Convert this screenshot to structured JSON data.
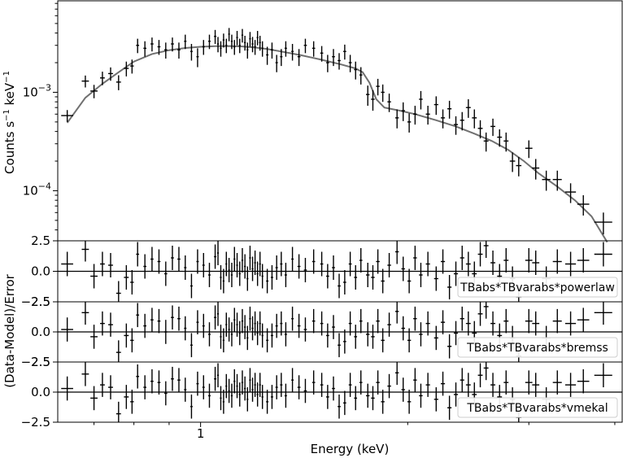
{
  "chart_data": [
    {
      "type": "scatter",
      "panel": "spectrum",
      "xscale": "log",
      "yscale": "log",
      "xlim": [
        0.62,
        4.1
      ],
      "ylim": [
        3.1e-05,
        0.0085
      ],
      "ylabel_parts": [
        "Counts s",
        "−1",
        " keV",
        "−1"
      ],
      "ytick_labels": [
        {
          "value": 0.001,
          "mant": "10",
          "exp": "−3"
        },
        {
          "value": 0.0001,
          "mant": "10",
          "exp": "−4"
        }
      ],
      "data": [
        [
          0.64,
          0.00058,
          0.02,
          8e-05
        ],
        [
          0.68,
          0.0013,
          0.012,
          0.00018
        ],
        [
          0.7,
          0.00103,
          0.012,
          0.00016
        ],
        [
          0.72,
          0.0014,
          0.008,
          0.00022
        ],
        [
          0.74,
          0.00155,
          0.008,
          0.00024
        ],
        [
          0.76,
          0.00127,
          0.008,
          0.00022
        ],
        [
          0.78,
          0.00175,
          0.008,
          0.0003
        ],
        [
          0.795,
          0.00185,
          0.006,
          0.0003
        ],
        [
          0.81,
          0.003,
          0.005,
          0.0005
        ],
        [
          0.83,
          0.0028,
          0.005,
          0.0005
        ],
        [
          0.85,
          0.0031,
          0.005,
          0.0005
        ],
        [
          0.87,
          0.0029,
          0.005,
          0.0005
        ],
        [
          0.89,
          0.0027,
          0.005,
          0.0005
        ],
        [
          0.91,
          0.0031,
          0.005,
          0.0005
        ],
        [
          0.93,
          0.0027,
          0.005,
          0.0005
        ],
        [
          0.95,
          0.0033,
          0.004,
          0.00055
        ],
        [
          0.97,
          0.0026,
          0.004,
          0.0005
        ],
        [
          0.99,
          0.0023,
          0.004,
          0.0005
        ],
        [
          1.01,
          0.0029,
          0.004,
          0.0005
        ],
        [
          1.03,
          0.0033,
          0.004,
          0.00055
        ],
        [
          1.05,
          0.0037,
          0.004,
          0.0006
        ],
        [
          1.06,
          0.0031,
          0.003,
          0.00055
        ],
        [
          1.07,
          0.0028,
          0.003,
          0.0005
        ],
        [
          1.08,
          0.0034,
          0.003,
          0.00055
        ],
        [
          1.09,
          0.003,
          0.003,
          0.0005
        ],
        [
          1.1,
          0.0039,
          0.003,
          0.0006
        ],
        [
          1.11,
          0.0033,
          0.003,
          0.00055
        ],
        [
          1.12,
          0.0029,
          0.003,
          0.0005
        ],
        [
          1.13,
          0.0036,
          0.003,
          0.0006
        ],
        [
          1.14,
          0.003,
          0.003,
          0.0005
        ],
        [
          1.15,
          0.0038,
          0.003,
          0.0006
        ],
        [
          1.16,
          0.0032,
          0.003,
          0.00055
        ],
        [
          1.17,
          0.0027,
          0.003,
          0.0005
        ],
        [
          1.18,
          0.0035,
          0.003,
          0.0006
        ],
        [
          1.19,
          0.0031,
          0.003,
          0.00055
        ],
        [
          1.2,
          0.0029,
          0.003,
          0.0005
        ],
        [
          1.21,
          0.0036,
          0.003,
          0.0006
        ],
        [
          1.22,
          0.0032,
          0.003,
          0.00055
        ],
        [
          1.23,
          0.0028,
          0.003,
          0.0005
        ],
        [
          1.25,
          0.0024,
          0.004,
          0.0005
        ],
        [
          1.27,
          0.0027,
          0.004,
          0.0005
        ],
        [
          1.29,
          0.002,
          0.004,
          0.0004
        ],
        [
          1.31,
          0.0023,
          0.004,
          0.00045
        ],
        [
          1.33,
          0.0028,
          0.004,
          0.0005
        ],
        [
          1.36,
          0.0026,
          0.004,
          0.0005
        ],
        [
          1.39,
          0.0023,
          0.005,
          0.00045
        ],
        [
          1.42,
          0.003,
          0.005,
          0.0005
        ],
        [
          1.46,
          0.0028,
          0.005,
          0.0005
        ],
        [
          1.5,
          0.0025,
          0.005,
          0.00045
        ],
        [
          1.53,
          0.002,
          0.005,
          0.0004
        ],
        [
          1.56,
          0.0023,
          0.005,
          0.00045
        ],
        [
          1.59,
          0.0021,
          0.005,
          0.0004
        ],
        [
          1.62,
          0.0026,
          0.005,
          0.00045
        ],
        [
          1.65,
          0.002,
          0.005,
          0.0004
        ],
        [
          1.68,
          0.0017,
          0.005,
          0.00035
        ],
        [
          1.71,
          0.0015,
          0.005,
          0.0003
        ],
        [
          1.75,
          0.00095,
          0.006,
          0.00022
        ],
        [
          1.78,
          0.00085,
          0.006,
          0.0002
        ],
        [
          1.81,
          0.00115,
          0.006,
          0.00022
        ],
        [
          1.84,
          0.001,
          0.006,
          0.0002
        ],
        [
          1.88,
          0.0008,
          0.006,
          0.00017
        ],
        [
          1.93,
          0.00055,
          0.006,
          0.00012
        ],
        [
          1.97,
          0.00065,
          0.006,
          0.00014
        ],
        [
          2.01,
          0.0005,
          0.006,
          0.00011
        ],
        [
          2.05,
          0.0006,
          0.006,
          0.00013
        ],
        [
          2.09,
          0.00085,
          0.006,
          0.00018
        ],
        [
          2.14,
          0.0006,
          0.007,
          0.00013
        ],
        [
          2.2,
          0.00075,
          0.007,
          0.00016
        ],
        [
          2.25,
          0.00055,
          0.007,
          0.00012
        ],
        [
          2.3,
          0.00068,
          0.007,
          0.00014
        ],
        [
          2.35,
          0.00047,
          0.007,
          0.0001
        ],
        [
          2.4,
          0.00052,
          0.007,
          0.00011
        ],
        [
          2.45,
          0.0007,
          0.008,
          0.00015
        ],
        [
          2.5,
          0.00055,
          0.008,
          0.00012
        ],
        [
          2.55,
          0.00043,
          0.008,
          9e-05
        ],
        [
          2.6,
          0.00032,
          0.008,
          7e-05
        ],
        [
          2.66,
          0.00045,
          0.008,
          9e-05
        ],
        [
          2.72,
          0.00035,
          0.008,
          7e-05
        ],
        [
          2.78,
          0.00032,
          0.008,
          7e-05
        ],
        [
          2.84,
          0.0002,
          0.009,
          4.5e-05
        ],
        [
          2.9,
          0.00018,
          0.009,
          4e-05
        ],
        [
          3.0,
          0.00027,
          0.012,
          5.5e-05
        ],
        [
          3.07,
          0.00017,
          0.012,
          4e-05
        ],
        [
          3.18,
          0.00013,
          0.014,
          3e-05
        ],
        [
          3.3,
          0.00013,
          0.015,
          3e-05
        ],
        [
          3.45,
          9.7e-05,
          0.018,
          2.2e-05
        ],
        [
          3.6,
          7.3e-05,
          0.02,
          1.7e-05
        ],
        [
          3.85,
          4.8e-05,
          0.03,
          1.2e-05
        ]
      ],
      "model_x": [
        0.64,
        0.68,
        0.72,
        0.76,
        0.8,
        0.85,
        0.9,
        0.95,
        1.0,
        1.05,
        1.1,
        1.15,
        1.2,
        1.25,
        1.3,
        1.4,
        1.5,
        1.6,
        1.68,
        1.72,
        1.76,
        1.8,
        1.85,
        1.95,
        2.05,
        2.2,
        2.35,
        2.5,
        2.65,
        2.8,
        2.95,
        3.1,
        3.3,
        3.5,
        3.7,
        3.9
      ],
      "model_y": [
        0.00049,
        0.00088,
        0.00122,
        0.0016,
        0.00205,
        0.00245,
        0.00268,
        0.00282,
        0.0029,
        0.00294,
        0.00295,
        0.00292,
        0.00285,
        0.00275,
        0.00262,
        0.00238,
        0.00214,
        0.00192,
        0.00175,
        0.0016,
        0.00125,
        0.00085,
        0.0007,
        0.00065,
        0.0006,
        0.00052,
        0.00045,
        0.00038,
        0.00032,
        0.00026,
        0.0002,
        0.00015,
        0.00011,
        8e-05,
        5.5e-05,
        3e-05
      ]
    },
    {
      "type": "scatter",
      "panel": "residuals",
      "model_label": "TBabs*TBvarabs*powerlaw",
      "ylim": [
        -2.5,
        2.5
      ],
      "ytick_labels": [
        "2.5",
        "0.0",
        "−2.5"
      ],
      "values": [
        0.6,
        1.8,
        -0.4,
        0.6,
        0.5,
        -1.8,
        -0.5,
        -0.9,
        1.4,
        0.4,
        1.0,
        0.8,
        -0.2,
        1.1,
        1.0,
        0.3,
        -1.2,
        0.8,
        0.5,
        -0.3,
        1.2,
        1.5,
        -0.5,
        -0.8,
        0.6,
        0.1,
        -0.3,
        1.0,
        0.5,
        -0.2,
        0.9,
        0.4,
        -0.6,
        1.1,
        0.2,
        0.7,
        -0.2,
        0.6,
        -0.4,
        -0.8,
        -0.5,
        0.3,
        0.6,
        -0.3,
        1.0,
        0.4,
        0.1,
        0.8,
        0.6,
        -0.4,
        0.3,
        -1.2,
        -0.9,
        0.6,
        -0.5,
        0.9,
        -0.3,
        -0.5,
        0.8,
        -0.8,
        0.5,
        1.6,
        0.2,
        -0.8,
        1.1,
        -0.3,
        0.6,
        -0.6,
        0.8,
        -1.3,
        -0.2,
        1.1,
        0.6,
        -0.2,
        1.4,
        2.1,
        0.7,
        -0.4,
        0.9,
        -0.6,
        -2.1,
        0.9,
        0.7,
        -0.6,
        0.8,
        0.6,
        0.9,
        1.4
      ]
    },
    {
      "type": "scatter",
      "panel": "residuals",
      "model_label": "TBabs*TBvarabs*bremss",
      "ylim": [
        -2.5,
        2.5
      ],
      "ytick_labels": [
        "2.5",
        "0.0",
        "−2.5"
      ],
      "values": [
        0.2,
        1.6,
        -0.4,
        0.7,
        0.6,
        -1.7,
        -0.3,
        -0.7,
        1.4,
        0.5,
        1.0,
        0.9,
        0.0,
        1.2,
        1.1,
        0.3,
        -1.1,
        0.8,
        0.5,
        -0.2,
        1.2,
        1.5,
        -0.4,
        -0.7,
        0.6,
        0.2,
        -0.2,
        1.0,
        0.6,
        -0.1,
        0.9,
        0.4,
        -0.5,
        1.1,
        0.3,
        0.7,
        -0.1,
        0.7,
        -0.3,
        -0.7,
        -0.3,
        0.5,
        0.7,
        -0.2,
        1.1,
        0.5,
        0.2,
        0.9,
        0.7,
        -0.3,
        0.4,
        -1.1,
        -0.8,
        0.7,
        -0.4,
        0.9,
        -0.2,
        -0.4,
        0.9,
        -0.7,
        0.6,
        1.7,
        0.3,
        -0.7,
        1.1,
        -0.2,
        0.7,
        -0.5,
        0.8,
        -1.2,
        -0.1,
        1.1,
        0.7,
        -0.1,
        1.5,
        2.1,
        0.7,
        -0.3,
        0.9,
        -0.5,
        -2.0,
        0.9,
        0.7,
        -0.5,
        0.9,
        0.7,
        1.0,
        1.6
      ]
    },
    {
      "type": "scatter",
      "panel": "residuals",
      "model_label": "TBabs*TBvarabs*vmekal",
      "ylim": [
        -2.5,
        2.5
      ],
      "ytick_labels": [
        "2.5",
        "0.0",
        "−2.5"
      ],
      "values": [
        0.3,
        1.5,
        -0.5,
        0.6,
        0.4,
        -1.8,
        -0.4,
        -0.8,
        1.3,
        0.4,
        0.9,
        0.8,
        -0.1,
        1.1,
        1.0,
        0.2,
        -1.2,
        0.7,
        0.4,
        -0.3,
        1.1,
        1.4,
        -0.5,
        -0.8,
        0.5,
        0.1,
        -0.3,
        0.9,
        0.5,
        -0.2,
        0.8,
        0.3,
        -0.6,
        1.0,
        0.2,
        0.6,
        -0.2,
        0.6,
        -0.4,
        -0.8,
        -0.4,
        0.4,
        0.6,
        -0.3,
        1.0,
        0.4,
        0.1,
        0.8,
        0.6,
        -0.4,
        0.3,
        -1.2,
        -0.9,
        0.6,
        -0.5,
        0.8,
        -0.3,
        -0.5,
        0.8,
        -0.8,
        0.5,
        1.6,
        0.2,
        -0.8,
        1.0,
        -0.3,
        0.6,
        -0.6,
        0.7,
        -1.3,
        -0.2,
        1.0,
        0.6,
        -0.2,
        1.4,
        2.0,
        0.6,
        -0.4,
        0.8,
        -0.6,
        -2.1,
        0.8,
        0.6,
        -0.6,
        0.8,
        0.6,
        0.9,
        1.4
      ]
    }
  ],
  "axes": {
    "xlabel": "Energy (keV)",
    "xtick_label": "1",
    "residual_ylabel": "(Data-Model)/Error"
  },
  "style": {
    "data_color": "#000000",
    "model_color": "#707070",
    "zero_line_color": "#000000"
  }
}
